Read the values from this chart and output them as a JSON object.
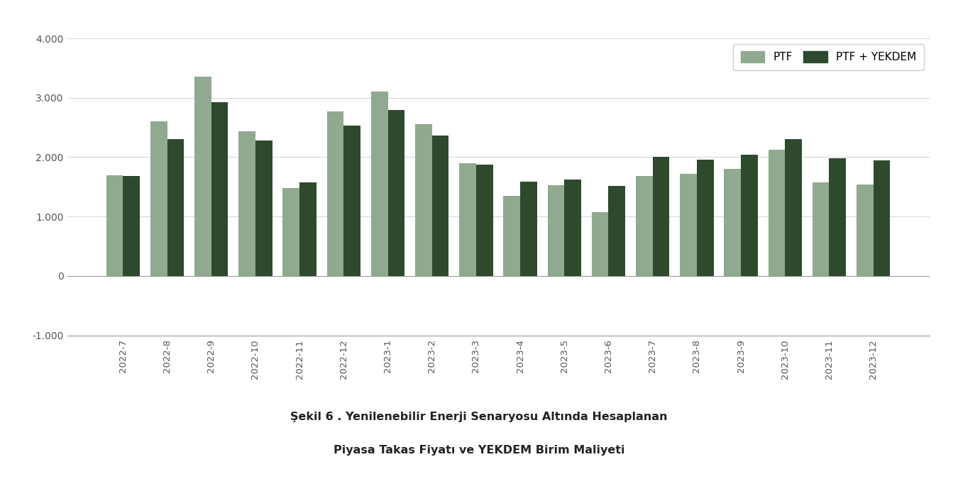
{
  "categories": [
    "2022-7",
    "2022-8",
    "2022-9",
    "2022-10",
    "2022-11",
    "2022-12",
    "2023-1",
    "2023-2",
    "2023-3",
    "2023-4",
    "2023-5",
    "2023-6",
    "2023-7",
    "2023-8",
    "2023-9",
    "2023-10",
    "2023-11",
    "2023-12"
  ],
  "ptf_values": [
    1700,
    2600,
    3350,
    2430,
    1480,
    2770,
    3100,
    2550,
    1900,
    1350,
    1530,
    1070,
    1680,
    1720,
    1800,
    2130,
    1580,
    1540
  ],
  "ptf_yekdem_values": [
    1680,
    2300,
    2920,
    2280,
    1580,
    2530,
    2790,
    2360,
    1870,
    1590,
    1620,
    1520,
    2000,
    1960,
    2040,
    2300,
    1980,
    1950
  ],
  "ptf_color": "#8faa8f",
  "ptf_yekdem_color": "#2d4a2d",
  "ylim_min": -1000,
  "ylim_max": 4000,
  "yticks": [
    -1000,
    0,
    1000,
    2000,
    3000,
    4000
  ],
  "ytick_labels": [
    "-1.000",
    "0",
    "1.000",
    "2.000",
    "3.000",
    "4.000"
  ],
  "legend_ptf": "PTF",
  "legend_ptf_yekdem": "PTF + YEKDEM",
  "caption_line1": "Şekil 6 . Yenilenebilir Enerji Senaryosu Altında Hesaplanan",
  "caption_line2": "Piyasa Takas Fiyatı ve YEKDEM Birim Maliyeti",
  "bg_color": "#ffffff",
  "bar_width": 0.38
}
